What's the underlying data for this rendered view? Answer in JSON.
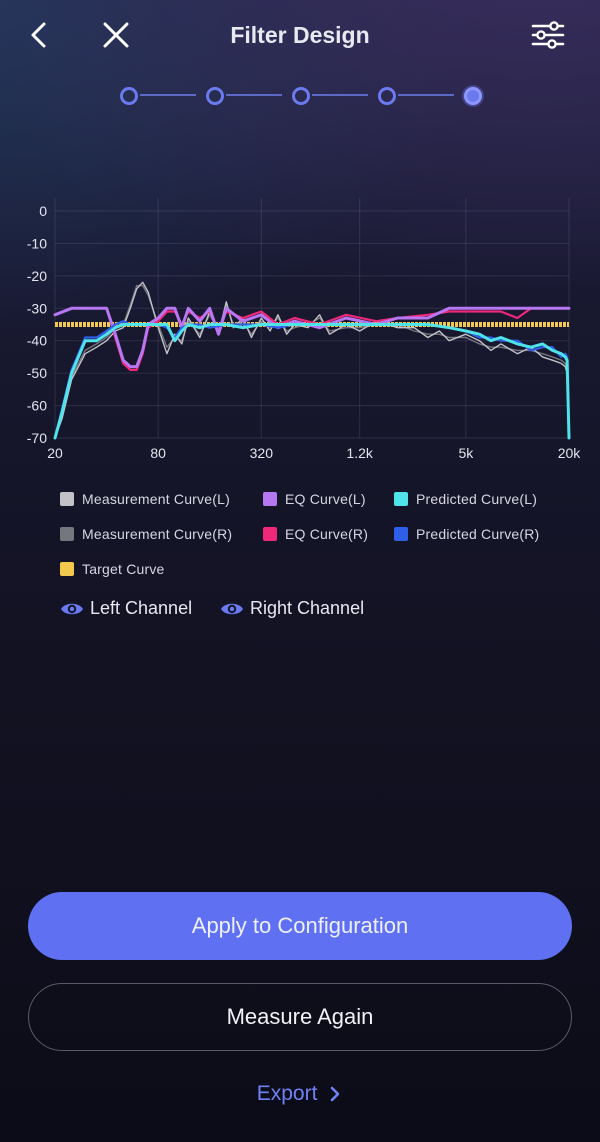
{
  "header": {
    "title": "Filter Design",
    "back_icon": "chevron-left-icon",
    "close_icon": "close-icon",
    "settings_icon": "sliders-icon"
  },
  "stepper": {
    "total_steps": 5,
    "current_step": 5
  },
  "chart_data": {
    "type": "line",
    "x_scale": "log",
    "x_ticks": [
      {
        "value": 20,
        "label": "20"
      },
      {
        "value": 80,
        "label": "80"
      },
      {
        "value": 320,
        "label": "320"
      },
      {
        "value": 1200,
        "label": "1.2k"
      },
      {
        "value": 5000,
        "label": "5k"
      },
      {
        "value": 20000,
        "label": "20k"
      }
    ],
    "y_ticks": [
      0,
      -10,
      -20,
      -30,
      -40,
      -50,
      -60,
      -70
    ],
    "ylim": [
      -70,
      4
    ],
    "xlim": [
      20,
      20000
    ],
    "series": [
      {
        "name": "Measurement Curve(L)",
        "color": "#c2c2c8",
        "x": [
          20,
          22,
          25,
          30,
          35,
          40,
          45,
          50,
          55,
          60,
          65,
          70,
          80,
          90,
          100,
          110,
          120,
          140,
          160,
          180,
          200,
          220,
          250,
          280,
          320,
          360,
          400,
          450,
          500,
          600,
          700,
          800,
          1000,
          1200,
          1500,
          2000,
          2500,
          3000,
          3500,
          4000,
          5000,
          6000,
          7000,
          8000,
          10000,
          12000,
          14000,
          16000,
          18000,
          19000,
          19500,
          20000
        ],
        "y": [
          -70,
          -64,
          -52,
          -44,
          -42,
          -40,
          -37,
          -36,
          -30,
          -24,
          -22,
          -25,
          -36,
          -44,
          -38,
          -41,
          -33,
          -39,
          -31,
          -38,
          -28,
          -36,
          -33,
          -39,
          -33,
          -37,
          -32,
          -38,
          -35,
          -36,
          -32,
          -38,
          -35,
          -37,
          -34,
          -36,
          -36,
          -39,
          -37,
          -40,
          -38,
          -40,
          -43,
          -41,
          -44,
          -42,
          -45,
          -46,
          -47,
          -48,
          -50,
          -70
        ]
      },
      {
        "name": "Measurement Curve(R)",
        "color": "#76767e",
        "x": [
          20,
          22,
          25,
          30,
          35,
          40,
          45,
          50,
          55,
          60,
          65,
          70,
          80,
          90,
          100,
          110,
          120,
          140,
          160,
          180,
          200,
          220,
          250,
          280,
          320,
          360,
          400,
          450,
          500,
          600,
          700,
          800,
          1000,
          1200,
          1500,
          2000,
          2500,
          3000,
          3500,
          4000,
          5000,
          6000,
          7000,
          8000,
          10000,
          12000,
          14000,
          16000,
          18000,
          19000,
          19500,
          20000
        ],
        "y": [
          -70,
          -63,
          -51,
          -43,
          -41,
          -39,
          -36,
          -35,
          -29,
          -23,
          -23,
          -26,
          -35,
          -42,
          -39,
          -40,
          -34,
          -38,
          -32,
          -37,
          -29,
          -35,
          -34,
          -38,
          -34,
          -36,
          -33,
          -37,
          -36,
          -35,
          -33,
          -37,
          -36,
          -36,
          -35,
          -35,
          -37,
          -38,
          -38,
          -39,
          -39,
          -41,
          -42,
          -42,
          -43,
          -43,
          -44,
          -45,
          -46,
          -47,
          -49,
          -70
        ]
      },
      {
        "name": "EQ Curve(L)",
        "color": "#b877f2",
        "x": [
          20,
          25,
          30,
          40,
          45,
          50,
          55,
          60,
          65,
          70,
          80,
          90,
          100,
          110,
          120,
          140,
          160,
          180,
          200,
          250,
          320,
          400,
          500,
          700,
          1000,
          1500,
          2000,
          3000,
          4000,
          5000,
          8000,
          12000,
          16000,
          20000
        ],
        "y": [
          -32,
          -30,
          -30,
          -30,
          -38,
          -46,
          -48,
          -48,
          -43,
          -35,
          -33,
          -30,
          -30,
          -36,
          -30,
          -34,
          -30,
          -38,
          -30,
          -34,
          -32,
          -36,
          -34,
          -36,
          -33,
          -35,
          -33,
          -33,
          -30,
          -30,
          -30,
          -30,
          -30,
          -30
        ]
      },
      {
        "name": "EQ Curve(R)",
        "color": "#f0287a",
        "x": [
          20,
          25,
          30,
          40,
          45,
          50,
          55,
          60,
          65,
          70,
          80,
          90,
          100,
          110,
          120,
          140,
          160,
          180,
          200,
          250,
          320,
          400,
          500,
          700,
          1000,
          1500,
          2000,
          3000,
          4000,
          5000,
          8000,
          10000,
          12000,
          16000,
          20000
        ],
        "y": [
          -32,
          -30,
          -30,
          -30,
          -39,
          -47,
          -49,
          -49,
          -44,
          -36,
          -34,
          -31,
          -31,
          -35,
          -31,
          -33,
          -31,
          -37,
          -31,
          -33,
          -31,
          -35,
          -33,
          -35,
          -32,
          -34,
          -33,
          -32,
          -31,
          -31,
          -31,
          -33,
          -30,
          -30,
          -30
        ]
      },
      {
        "name": "Predicted Curve(L)",
        "color": "#4fe3ea",
        "x": [
          20,
          22,
          25,
          30,
          35,
          40,
          45,
          50,
          55,
          60,
          70,
          80,
          90,
          100,
          110,
          120,
          140,
          160,
          200,
          250,
          320,
          400,
          500,
          700,
          1000,
          1500,
          2000,
          3000,
          4000,
          5000,
          6000,
          7000,
          8000,
          10000,
          12000,
          14000,
          16000,
          18000,
          19000,
          19500,
          20000
        ],
        "y": [
          -70,
          -62,
          -50,
          -40,
          -40,
          -38,
          -36,
          -35,
          -35,
          -35,
          -35,
          -35,
          -35,
          -40,
          -37,
          -35,
          -36,
          -35,
          -35,
          -36,
          -35,
          -35,
          -35,
          -35,
          -35,
          -35,
          -35,
          -35,
          -36,
          -37,
          -38,
          -40,
          -39,
          -41,
          -42,
          -41,
          -43,
          -44,
          -45,
          -46,
          -70
        ]
      },
      {
        "name": "Predicted Curve(R)",
        "color": "#2f5fe8",
        "x": [
          20,
          22,
          25,
          30,
          35,
          40,
          45,
          50,
          55,
          60,
          70,
          80,
          90,
          100,
          110,
          120,
          140,
          160,
          200,
          250,
          320,
          400,
          500,
          700,
          1000,
          1500,
          2000,
          3000,
          4000,
          5000,
          6000,
          7000,
          8000,
          10000,
          12000,
          14000,
          16000,
          18000,
          19000,
          19500,
          20000
        ],
        "y": [
          -70,
          -61,
          -49,
          -39,
          -39,
          -37,
          -35,
          -34,
          -35,
          -35,
          -35,
          -35,
          -36,
          -39,
          -36,
          -35,
          -35,
          -36,
          -35,
          -35,
          -35,
          -36,
          -35,
          -35,
          -35,
          -35,
          -35,
          -35,
          -36,
          -37,
          -39,
          -39,
          -40,
          -40,
          -43,
          -42,
          -42,
          -45,
          -44,
          -45,
          -70
        ]
      },
      {
        "name": "Target Curve",
        "color": "#f2c94c",
        "x": [
          20,
          20000
        ],
        "y": [
          -35,
          -35
        ]
      }
    ]
  },
  "legend": {
    "items": [
      {
        "label": "Measurement Curve(L)",
        "color": "#c2c2c8"
      },
      {
        "label": "EQ Curve(L)",
        "color": "#b877f2"
      },
      {
        "label": "Predicted Curve(L)",
        "color": "#4fe3ea"
      },
      {
        "label": "Measurement Curve(R)",
        "color": "#76767e"
      },
      {
        "label": "EQ Curve(R)",
        "color": "#f0287a"
      },
      {
        "label": "Predicted Curve(R)",
        "color": "#2f5fe8"
      },
      {
        "label": "Target Curve",
        "color": "#f2c94c"
      }
    ]
  },
  "channels": {
    "left_label": "Left Channel",
    "right_label": "Right Channel",
    "icon": "eye-icon"
  },
  "actions": {
    "apply_label": "Apply to Configuration",
    "measure_label": "Measure Again",
    "export_label": "Export"
  },
  "colors": {
    "accent": "#5f71f2",
    "link": "#6f82f5"
  }
}
